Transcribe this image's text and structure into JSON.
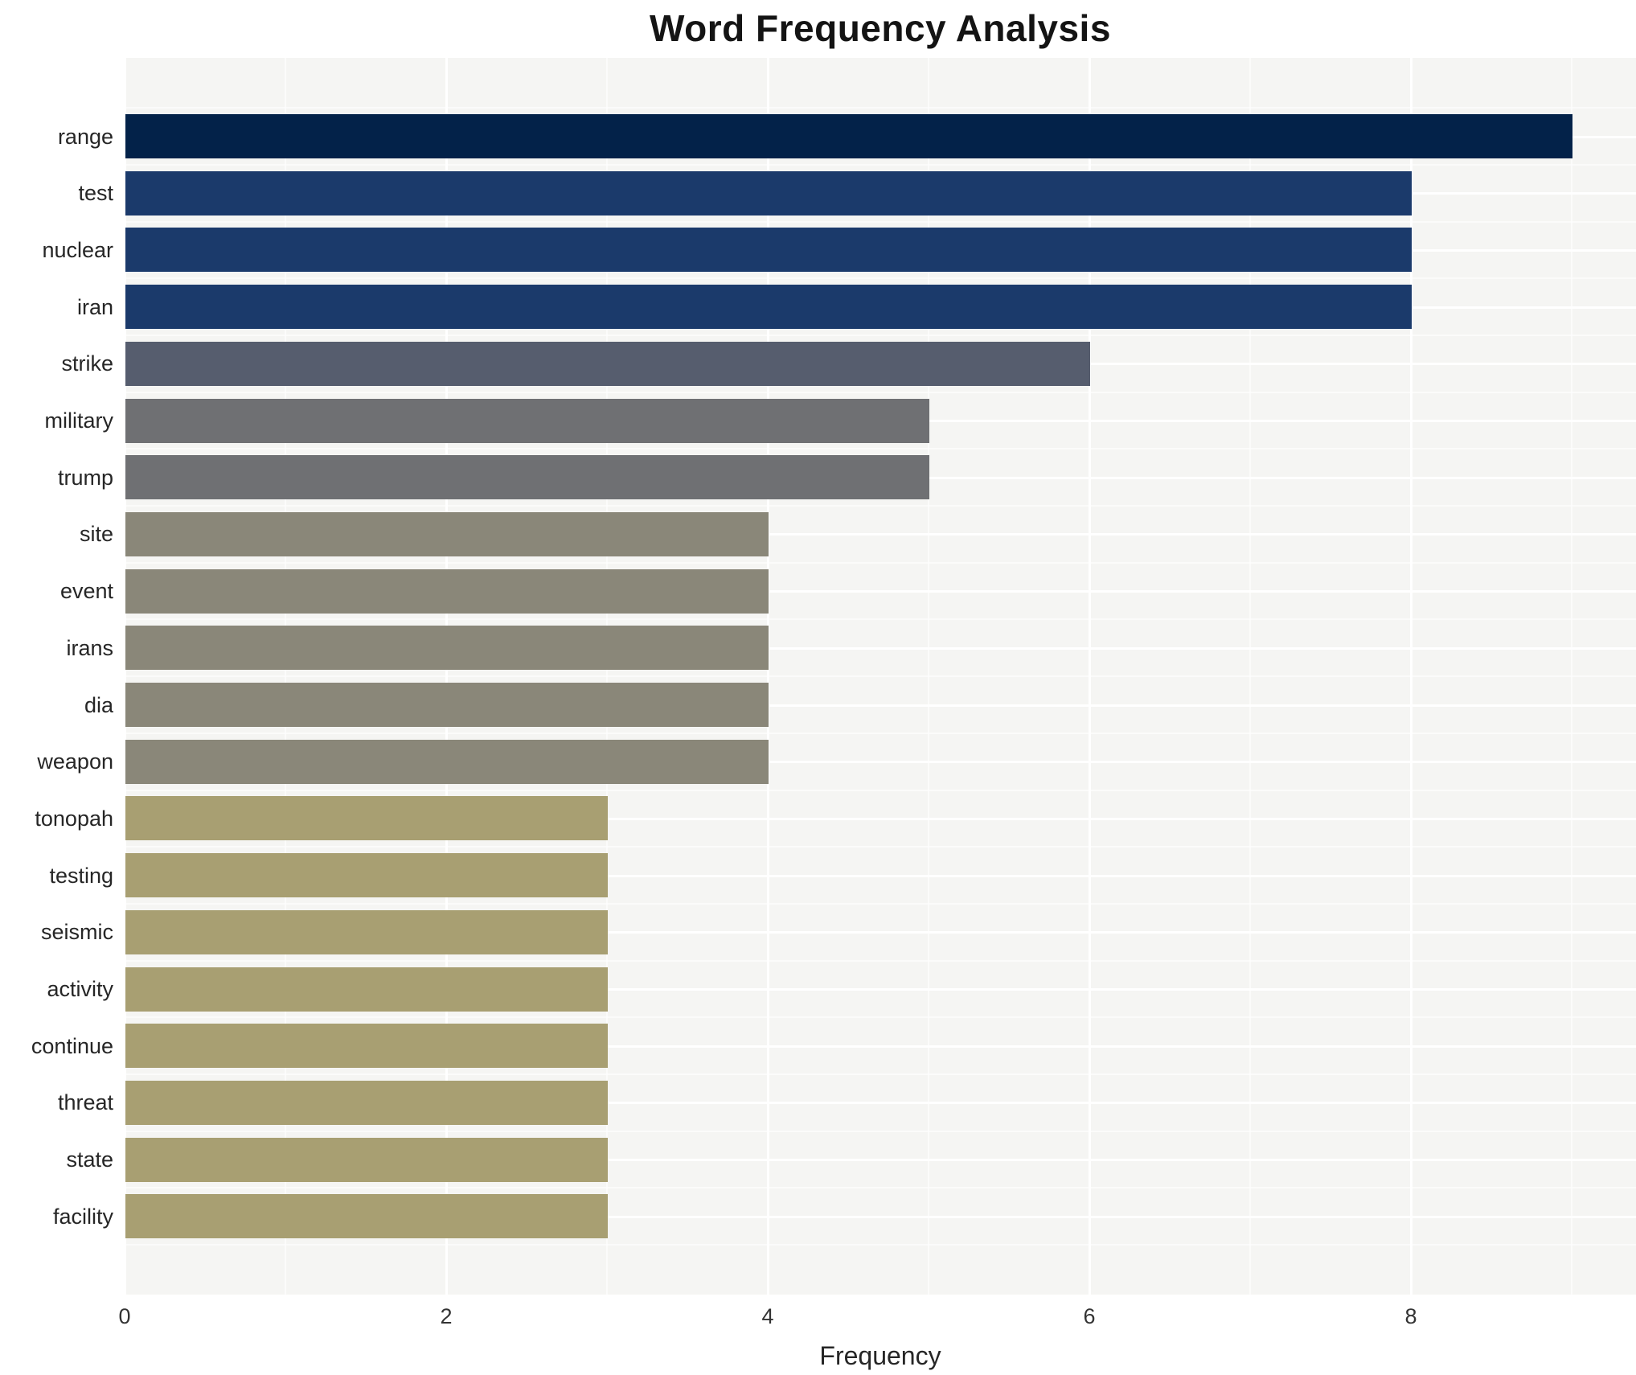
{
  "chart_data": {
    "type": "bar",
    "orientation": "horizontal",
    "title": "Word Frequency Analysis",
    "xlabel": "Frequency",
    "ylabel": "",
    "xlim": [
      0,
      9.4
    ],
    "xticks": [
      0,
      2,
      4,
      6,
      8
    ],
    "grid": true,
    "legend": "none",
    "categories": [
      "range",
      "test",
      "nuclear",
      "iran",
      "strike",
      "military",
      "trump",
      "site",
      "event",
      "irans",
      "dia",
      "weapon",
      "tonopah",
      "testing",
      "seismic",
      "activity",
      "continue",
      "threat",
      "state",
      "facility"
    ],
    "values": [
      9,
      8,
      8,
      8,
      6,
      5,
      5,
      4,
      4,
      4,
      4,
      4,
      3,
      3,
      3,
      3,
      3,
      3,
      3,
      3
    ],
    "bar_colors": [
      "#032249",
      "#1b3a6b",
      "#1b3a6b",
      "#1b3a6b",
      "#565d6e",
      "#6f7073",
      "#6f7073",
      "#8a8779",
      "#8a8779",
      "#8a8779",
      "#8a8779",
      "#8a8779",
      "#a89f72",
      "#a89f72",
      "#a89f72",
      "#a89f72",
      "#a89f72",
      "#a89f72",
      "#a89f72",
      "#a89f72"
    ],
    "colors": {
      "plot_background": "#f5f5f3",
      "page_background": "#ffffff",
      "grid": "#ffffff",
      "title_text": "#141414",
      "tick_text": "#333333"
    }
  }
}
